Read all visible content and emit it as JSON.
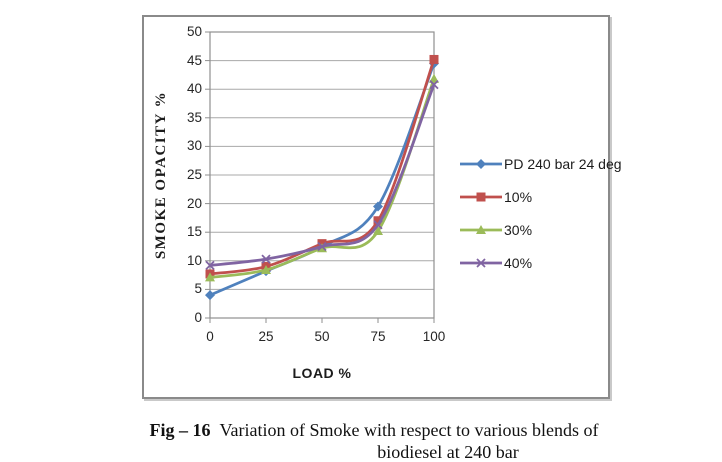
{
  "figure": {
    "caption_bold": "Fig – 16",
    "caption_rest": "Variation of Smoke with respect to various blends of",
    "caption_line2": "biodiesel at 240 bar"
  },
  "chart_data": {
    "type": "line",
    "title": "",
    "xlabel": "LOAD %",
    "ylabel": "SMOKE OPACITY %",
    "x": [
      0,
      25,
      50,
      75,
      100
    ],
    "x_ticks": [
      "0",
      "25",
      "50",
      "75",
      "100"
    ],
    "y_ticks": [
      0,
      5,
      10,
      15,
      20,
      25,
      30,
      35,
      40,
      45,
      50
    ],
    "xlim": [
      0,
      100
    ],
    "ylim": [
      0,
      50
    ],
    "grid": "horizontal",
    "smooth_lines": true,
    "legend_position": "right",
    "series": [
      {
        "name": "PD 240 bar 24 deg",
        "color": "#4F81BD",
        "marker": "diamond",
        "values": [
          4.0,
          8.2,
          12.5,
          19.5,
          44.5
        ]
      },
      {
        "name": "10%",
        "color": "#C0504D",
        "marker": "square",
        "values": [
          7.7,
          9.0,
          13.0,
          17.0,
          45.2
        ]
      },
      {
        "name": "30%",
        "color": "#9BBB59",
        "marker": "triangle",
        "values": [
          7.1,
          8.4,
          12.2,
          15.2,
          41.8
        ]
      },
      {
        "name": "40%",
        "color": "#8064A2",
        "marker": "x",
        "values": [
          9.2,
          10.3,
          12.5,
          16.3,
          40.8
        ]
      }
    ]
  },
  "colors": {
    "grid": "#a8a8a8",
    "axis": "#8f8f8f",
    "chart_border": "#8a8a8a",
    "text": "#262626"
  }
}
